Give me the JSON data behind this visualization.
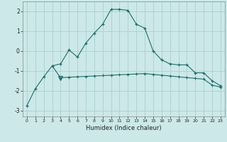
{
  "xlabel": "Humidex (Indice chaleur)",
  "background_color": "#cce8e8",
  "grid_color": "#aacfcf",
  "line_color": "#1a6e6a",
  "xlim": [
    -0.5,
    23.5
  ],
  "ylim": [
    -3.3,
    2.5
  ],
  "yticks": [
    -3,
    -2,
    -1,
    0,
    1,
    2
  ],
  "xticks": [
    0,
    1,
    2,
    3,
    4,
    5,
    6,
    7,
    8,
    9,
    10,
    11,
    12,
    13,
    14,
    15,
    16,
    17,
    18,
    19,
    20,
    21,
    22,
    23
  ],
  "line1_x": [
    0,
    1,
    2,
    3,
    4,
    5,
    6,
    7,
    8,
    9,
    10,
    11,
    12,
    13,
    14,
    15,
    16,
    17,
    18,
    19,
    20,
    21,
    22,
    23
  ],
  "line1_y": [
    -2.75,
    -1.9,
    -1.3,
    -0.75,
    -0.65,
    0.05,
    -0.3,
    0.4,
    0.9,
    1.35,
    2.1,
    2.1,
    2.05,
    1.35,
    1.15,
    0.0,
    -0.45,
    -0.65,
    -0.7,
    -0.7,
    -1.1,
    -1.1,
    -1.5,
    -1.75
  ],
  "line2_x": [
    3,
    4,
    5,
    6,
    7,
    8,
    9,
    10,
    11,
    12,
    13,
    14,
    15,
    16,
    17,
    18,
    19,
    20,
    21,
    22,
    23
  ],
  "line2_y": [
    -0.75,
    -1.35,
    -1.32,
    -1.3,
    -1.28,
    -1.26,
    -1.24,
    -1.22,
    -1.2,
    -1.18,
    -1.16,
    -1.14,
    -1.18,
    -1.22,
    -1.26,
    -1.3,
    -1.34,
    -1.38,
    -1.42,
    -1.72,
    -1.82
  ],
  "triangle_x": [
    4
  ],
  "triangle_y": [
    -1.35
  ]
}
